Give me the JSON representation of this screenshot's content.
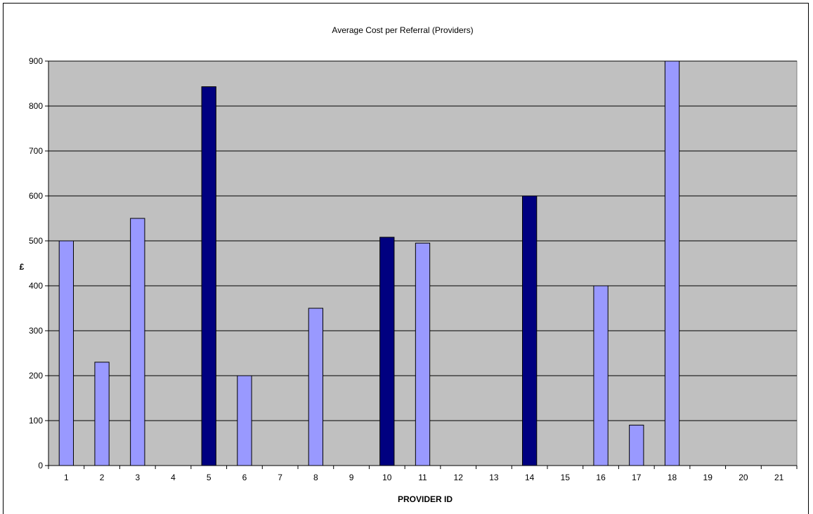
{
  "chart_data": {
    "type": "bar",
    "title": "Average Cost per Referral (Providers)",
    "xlabel": "PROVIDER ID",
    "ylabel": "£",
    "ylim": [
      0,
      900
    ],
    "yticks": [
      0,
      100,
      200,
      300,
      400,
      500,
      600,
      700,
      800,
      900
    ],
    "grid": true,
    "plot_background": "#c0c0c0",
    "categories": [
      "1",
      "2",
      "3",
      "4",
      "5",
      "6",
      "7",
      "8",
      "9",
      "10",
      "11",
      "12",
      "13",
      "14",
      "15",
      "16",
      "17",
      "18",
      "19",
      "20",
      "21"
    ],
    "values": [
      500,
      230,
      550,
      null,
      843,
      200,
      null,
      350,
      null,
      508,
      495,
      null,
      null,
      600,
      null,
      400,
      90,
      900,
      null,
      null,
      null
    ],
    "bar_colors": [
      "#9999ff",
      "#9999ff",
      "#9999ff",
      "#9999ff",
      "#000080",
      "#9999ff",
      "#9999ff",
      "#9999ff",
      "#9999ff",
      "#000080",
      "#9999ff",
      "#9999ff",
      "#9999ff",
      "#000080",
      "#9999ff",
      "#9999ff",
      "#9999ff",
      "#9999ff",
      "#9999ff",
      "#9999ff",
      "#9999ff"
    ]
  }
}
